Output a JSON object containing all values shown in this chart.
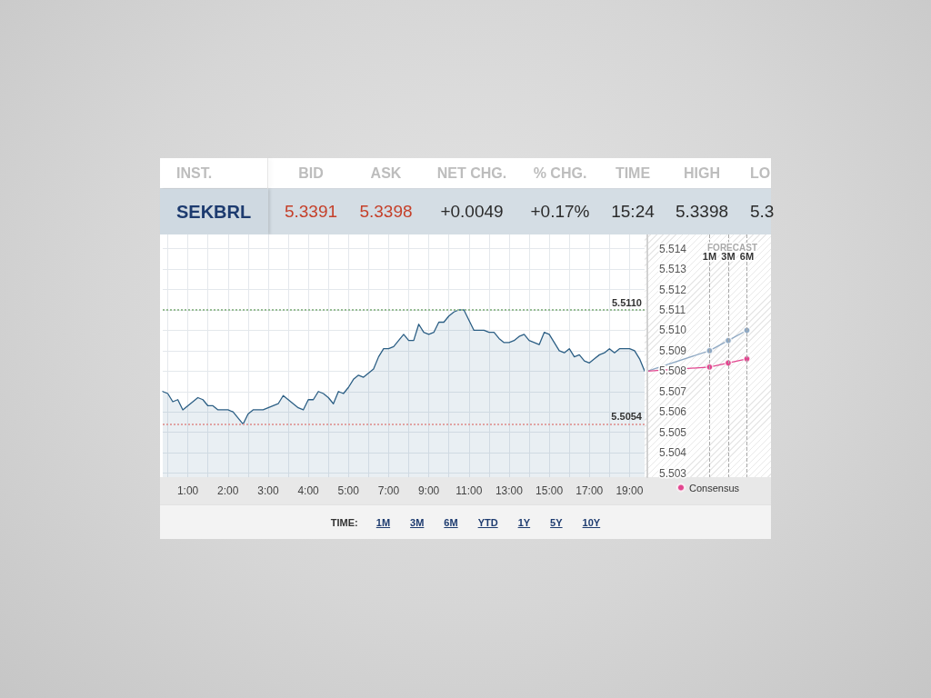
{
  "chart_data": [
    {
      "type": "other",
      "categories": [
        "INST.",
        "BID",
        "ASK",
        "NET CHG.",
        "% CHG.",
        "TIME",
        "HIGH",
        "LO"
      ],
      "annotations": [
        "SEKBRL",
        "5.3391",
        "5.3398",
        "+0.0049",
        "+0.17%",
        "15:24",
        "5.3398",
        "5.3"
      ]
    },
    {
      "type": "area",
      "categories": [
        null,
        null,
        null,
        null,
        null,
        "1:00",
        null,
        null,
        null,
        null,
        null,
        null,
        null,
        "2:00",
        null,
        null,
        null,
        null,
        null,
        null,
        null,
        "3:00",
        null,
        null,
        null,
        null,
        null,
        null,
        null,
        "4:00",
        null,
        null,
        null,
        null,
        null,
        null,
        null,
        "5:00",
        null,
        null,
        null,
        null,
        null,
        null,
        null,
        "7:00",
        null,
        null,
        null,
        null,
        null,
        null,
        null,
        "9:00",
        null,
        null,
        null,
        null,
        null,
        null,
        null,
        "11:00",
        null,
        null,
        null,
        null,
        null,
        null,
        null,
        "13:00",
        null,
        null,
        null,
        null,
        null,
        null,
        null,
        "15:00",
        null,
        null,
        null,
        null,
        null,
        null,
        null,
        "17:00",
        null,
        null,
        null,
        null,
        null,
        null,
        null,
        "19:00",
        null,
        null,
        null
      ],
      "color": "#2c5f85",
      "values": [
        5.507,
        5.5069,
        5.5065,
        5.5066,
        5.5061,
        5.5063,
        5.5065,
        5.5067,
        5.5066,
        5.5063,
        5.5063,
        5.5061,
        5.5061,
        5.5061,
        5.506,
        5.5057,
        5.5054,
        5.5059,
        5.5061,
        5.5061,
        5.5061,
        5.5062,
        5.5063,
        5.5064,
        5.5068,
        5.5066,
        5.5064,
        5.5062,
        5.5061,
        5.5066,
        5.5066,
        5.507,
        5.5069,
        5.5067,
        5.5064,
        5.507,
        5.5069,
        5.5072,
        5.5076,
        5.5078,
        5.5077,
        5.5079,
        5.5081,
        5.5087,
        5.5091,
        5.5091,
        5.5092,
        5.5095,
        5.5098,
        5.5095,
        5.5095,
        5.5103,
        5.5099,
        5.5098,
        5.5099,
        5.5104,
        5.5104,
        5.5107,
        5.5109,
        5.511,
        5.511,
        5.5105,
        5.51,
        5.51,
        5.51,
        5.5099,
        5.5099,
        5.5096,
        5.5094,
        5.5094,
        5.5095,
        5.5097,
        5.5098,
        5.5095,
        5.5094,
        5.5093,
        5.5099,
        5.5098,
        5.5094,
        5.509,
        5.5089,
        5.5091,
        5.5087,
        5.5088,
        5.5085,
        5.5084,
        5.5086,
        5.5088,
        5.5089,
        5.5091,
        5.5089,
        5.5091,
        5.5091,
        5.5091,
        5.509,
        5.5086,
        5.508
      ],
      "ylim": [
        5.5028,
        5.5147
      ],
      "yticks": [
        5.503,
        5.504,
        5.505,
        5.506,
        5.507,
        5.508,
        5.509,
        5.51,
        5.511,
        5.512,
        5.513,
        5.514
      ],
      "tick_labels": "x",
      "grid": true,
      "ref_lines": [
        {
          "axis": "y",
          "value": 5.511,
          "label": "5.5110",
          "color": "#97bd94",
          "line_style": "dotted"
        },
        {
          "axis": "y",
          "value": 5.5054,
          "label": "5.5054",
          "color": "#e0a2a2",
          "line_style": "dotted"
        }
      ]
    },
    {
      "type": "line",
      "title": "FORECAST",
      "categories": [
        null,
        null,
        null,
        null,
        null,
        null,
        null,
        null,
        null,
        null,
        "1M",
        null,
        null,
        "3M",
        null,
        null,
        "6M",
        null,
        null,
        null
      ],
      "series": [
        {
          "color": "#8ea8c3",
          "values": [
            5.508,
            null,
            null,
            null,
            null,
            null,
            null,
            null,
            null,
            null,
            5.509,
            null,
            null,
            5.5095,
            null,
            null,
            5.51,
            null,
            null,
            null
          ]
        },
        {
          "name": "Consensus",
          "color": "#e2468f",
          "values": [
            5.508,
            null,
            null,
            null,
            null,
            null,
            null,
            null,
            null,
            null,
            5.5082,
            null,
            null,
            5.5084,
            null,
            null,
            5.5086,
            null,
            null,
            null
          ]
        }
      ],
      "ylim": [
        5.5028,
        5.5147
      ],
      "yticks": [
        5.503,
        5.504,
        5.505,
        5.506,
        5.507,
        5.508,
        5.509,
        {
          "value": 5.51,
          "label": "5.510"
        },
        5.511,
        5.512,
        5.513,
        5.514
      ],
      "grid": "x",
      "legend": "bottom",
      "marker": "circle"
    },
    {
      "type": "other",
      "title": "TIME:",
      "annotations": [
        "1M",
        "3M",
        "6M",
        "YTD",
        "1Y",
        "5Y",
        "10Y"
      ]
    }
  ]
}
